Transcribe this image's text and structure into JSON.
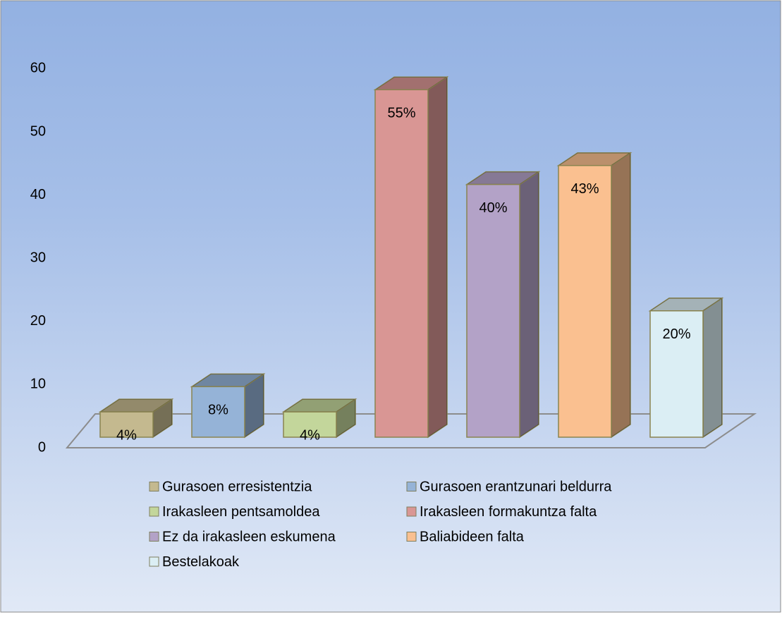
{
  "chart_data": {
    "type": "bar",
    "series": [
      {
        "name": "Gurasoen erresistentzia",
        "color": "#c4b98f",
        "values": [
          4
        ],
        "value_labels": [
          "4%"
        ]
      },
      {
        "name": "Gurasoen erantzunari beldurra",
        "color": "#95b3d7",
        "values": [
          8
        ],
        "value_labels": [
          "8%"
        ]
      },
      {
        "name": "Irakasleen pentsamoldea",
        "color": "#c3d69b",
        "values": [
          4
        ],
        "value_labels": [
          "4%"
        ]
      },
      {
        "name": "Irakasleen formakuntza falta",
        "color": "#d99694",
        "values": [
          55
        ],
        "value_labels": [
          "55%"
        ]
      },
      {
        "name": "Ez da irakasleen eskumena",
        "color": "#b3a2c7",
        "values": [
          40
        ],
        "value_labels": [
          "40%"
        ]
      },
      {
        "name": "Baliabideen falta",
        "color": "#fac090",
        "values": [
          43
        ],
        "value_labels": [
          "43%"
        ]
      },
      {
        "name": "Bestelakoak",
        "color": "#dbeef4",
        "values": [
          20
        ],
        "value_labels": [
          "20%"
        ]
      }
    ],
    "ylim": [
      0,
      60
    ],
    "yticks": [
      0,
      10,
      20,
      30,
      40,
      50,
      60
    ],
    "legend": "bottom"
  }
}
